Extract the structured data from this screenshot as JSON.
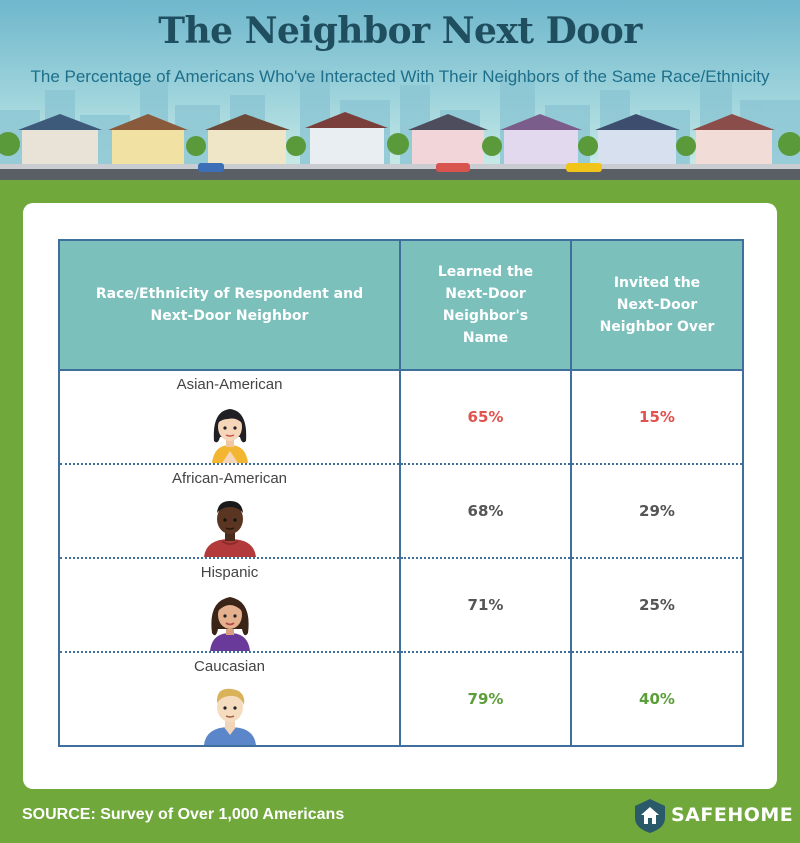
{
  "header": {
    "title": "The Neighbor Next Door",
    "subtitle": "The Percentage of Americans Who've Interacted With Their Neighbors of the Same Race/Ethnicity"
  },
  "table": {
    "columns": [
      "Race/Ethnicity of Respondent and Next-Door Neighbor",
      "Learned the Next-Door Neighbor's Name",
      "Invited the Next-Door Neighbor Over"
    ],
    "rows": [
      {
        "group": "Asian-American",
        "learned_name": "65%",
        "invited_over": "15%",
        "value_color": "#e0524d",
        "avatar": "asian-woman-icon"
      },
      {
        "group": "African-American",
        "learned_name": "68%",
        "invited_over": "29%",
        "value_color": "#555555",
        "avatar": "african-american-man-icon"
      },
      {
        "group": "Hispanic",
        "learned_name": "71%",
        "invited_over": "25%",
        "value_color": "#555555",
        "avatar": "hispanic-woman-icon"
      },
      {
        "group": "Caucasian",
        "learned_name": "79%",
        "invited_over": "40%",
        "value_color": "#5c9e3a",
        "avatar": "caucasian-man-icon"
      }
    ]
  },
  "footer": {
    "source": "SOURCE: Survey of Over 1,000 Americans",
    "brand": "SAFEHOME",
    "brand_icon": "house-shield-icon"
  },
  "colors": {
    "header_bg": "#7cc0bc",
    "border": "#3f6f9d",
    "page_bg": "#70a83c",
    "title": "#1f4e5f",
    "highlight_low": "#e0524d",
    "highlight_high": "#5c9e3a"
  }
}
